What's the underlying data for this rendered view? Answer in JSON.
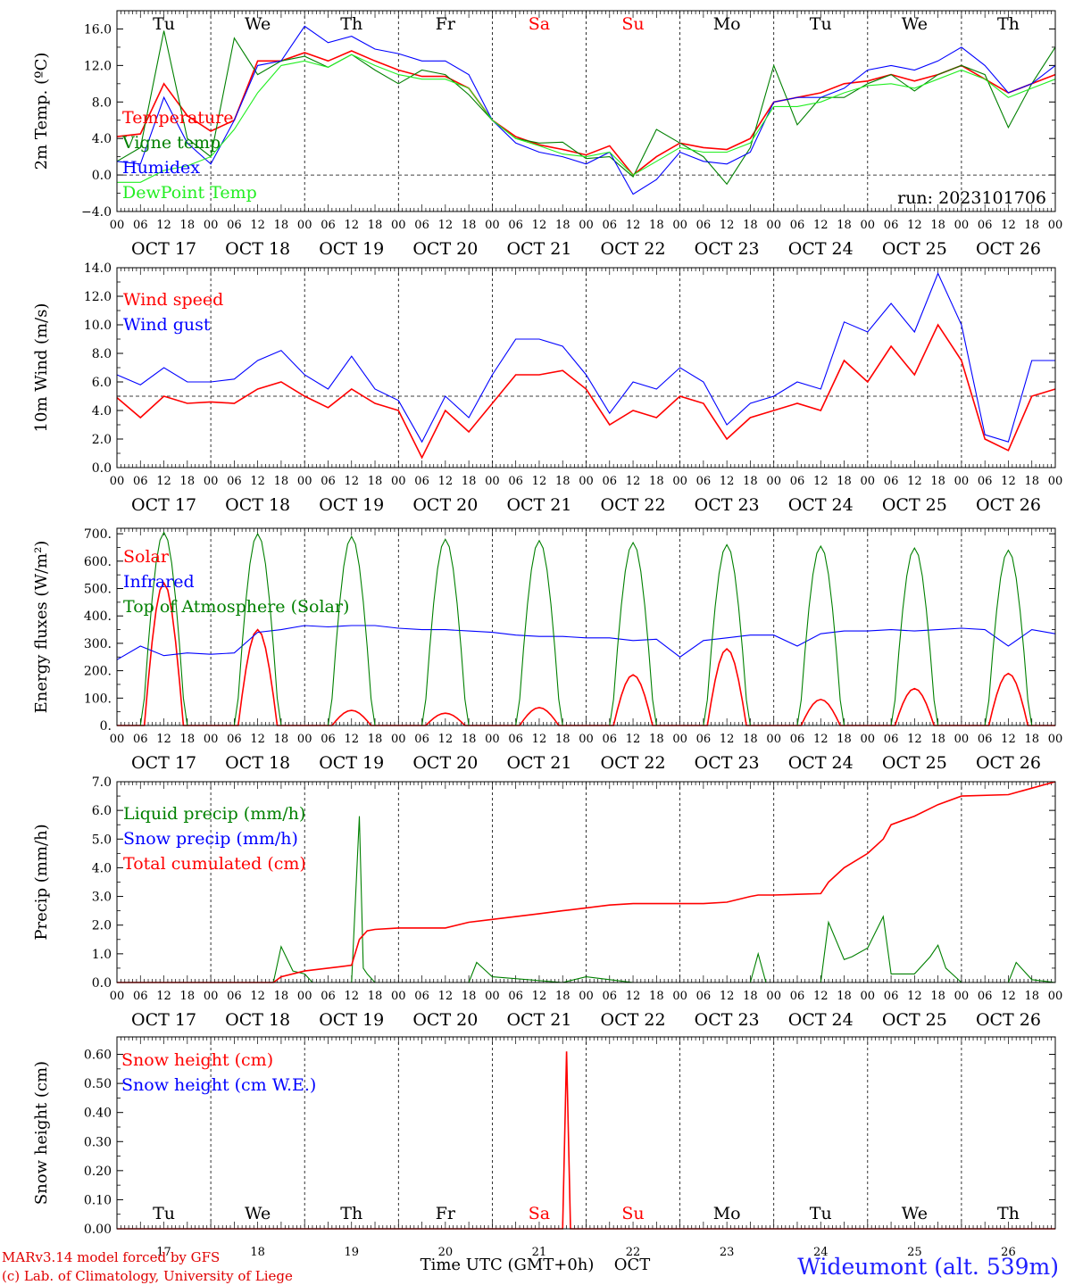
{
  "colors": {
    "red": "#ff0000",
    "green": "#008000",
    "blue": "#0000ff",
    "lightgreen": "#22ee22",
    "saturday_sunday": "#ff0000",
    "weekday": "#000000",
    "station": "#2020ff"
  },
  "time_axis": {
    "days": 10,
    "hour_ticks": [
      "00",
      "06",
      "12",
      "18"
    ],
    "final_hour_tick": "00",
    "date_labels": [
      "OCT 17",
      "OCT 18",
      "OCT 19",
      "OCT 20",
      "OCT 21",
      "OCT 22",
      "OCT 23",
      "OCT 24",
      "OCT 25",
      "OCT 26"
    ],
    "weekday_labels": [
      "Tu",
      "We",
      "Th",
      "Fr",
      "Sa",
      "Su",
      "Mo",
      "Tu",
      "We",
      "Th"
    ],
    "weekend_flags": [
      false,
      false,
      false,
      false,
      true,
      true,
      false,
      false,
      false,
      false
    ],
    "day_numbers": [
      "17",
      "18",
      "19",
      "20",
      "21",
      "22",
      "23",
      "24",
      "25",
      "26"
    ]
  },
  "footer": {
    "model_line": "MARv3.14 model forced by GFS",
    "copyright_line": "(c) Lab. of Climatology, University of Liege",
    "xlabel": "Time UTC (GMT+0h)",
    "month": "OCT",
    "station": "Wideumont (alt. 539m)"
  },
  "chart_data": [
    {
      "id": "temp",
      "type": "line",
      "ylabel": "2m Temp. (ºC)",
      "ylim": [
        -4,
        18
      ],
      "yticks": [
        -4,
        0,
        4,
        8,
        12,
        16
      ],
      "ytick_labels": [
        "−4.0",
        "0.0",
        "4.0",
        "8.0",
        "12.0",
        "16.0"
      ],
      "ref_line": 0,
      "annotation": "run: 2023101706",
      "show_weekdays": "top",
      "x_unit": "hours from OCT 17 00 UTC",
      "series": [
        {
          "name": "Temperature",
          "color": "red",
          "x": [
            0,
            6,
            12,
            18,
            24,
            30,
            36,
            42,
            48,
            54,
            60,
            66,
            72,
            78,
            84,
            90,
            96,
            102,
            108,
            114,
            120,
            126,
            132,
            138,
            144,
            150,
            156,
            162,
            168,
            174,
            180,
            186,
            192,
            198,
            204,
            210,
            216,
            222,
            228,
            234,
            240
          ],
          "values": [
            4.2,
            4.5,
            10,
            6.5,
            4.8,
            6,
            12.5,
            12.5,
            13.4,
            12.5,
            13.6,
            12.5,
            11.5,
            10.8,
            10.8,
            9.5,
            6,
            4.2,
            3.3,
            2.8,
            2.2,
            3.2,
            0,
            2,
            3.5,
            3,
            2.8,
            4,
            8,
            8.5,
            9,
            10,
            10.3,
            11,
            10.3,
            11,
            12,
            10.5,
            9,
            10,
            11
          ]
        },
        {
          "name": "Vigne temp",
          "color": "green",
          "x": [
            0,
            6,
            12,
            18,
            24,
            30,
            36,
            42,
            48,
            54,
            60,
            66,
            72,
            78,
            84,
            90,
            96,
            102,
            108,
            114,
            120,
            126,
            132,
            138,
            144,
            150,
            156,
            162,
            168,
            174,
            180,
            186,
            192,
            198,
            204,
            210,
            216,
            222,
            228,
            234,
            240
          ],
          "values": [
            1.5,
            3,
            15.8,
            4,
            2,
            15,
            11,
            12.5,
            13,
            11.8,
            13.2,
            11.5,
            10,
            11.5,
            11,
            8.8,
            6,
            4,
            3.5,
            3.6,
            1.8,
            2,
            -0.2,
            5,
            3.5,
            2,
            -1,
            3,
            12,
            5.5,
            8.5,
            8.5,
            10,
            11,
            9.2,
            11,
            12,
            11,
            5.2,
            10,
            14
          ]
        },
        {
          "name": "Humidex",
          "color": "blue",
          "x": [
            0,
            6,
            12,
            18,
            24,
            30,
            36,
            42,
            48,
            54,
            60,
            66,
            72,
            78,
            84,
            90,
            96,
            102,
            108,
            114,
            120,
            126,
            132,
            138,
            144,
            150,
            156,
            162,
            168,
            174,
            180,
            186,
            192,
            198,
            204,
            210,
            216,
            222,
            228,
            234,
            240
          ],
          "values": [
            1.5,
            1.2,
            8.5,
            3.5,
            1.2,
            6,
            12,
            12.5,
            16.3,
            14.5,
            15.2,
            13.8,
            13.3,
            12.5,
            12.5,
            11,
            6,
            3.5,
            2.5,
            2,
            1.2,
            2.5,
            -2.1,
            -0.5,
            2.5,
            1.5,
            1.2,
            2.5,
            8,
            8.5,
            8.5,
            9.5,
            11.5,
            12,
            11.5,
            12.5,
            14,
            12,
            9,
            10,
            12
          ]
        },
        {
          "name": "DewPoint Temp",
          "color": "lightgreen",
          "x": [
            0,
            6,
            12,
            18,
            24,
            30,
            36,
            42,
            48,
            54,
            60,
            66,
            72,
            78,
            84,
            90,
            96,
            102,
            108,
            114,
            120,
            126,
            132,
            138,
            144,
            150,
            156,
            162,
            168,
            174,
            180,
            186,
            192,
            198,
            204,
            210,
            216,
            222,
            228,
            234,
            240
          ],
          "values": [
            -0.8,
            -0.8,
            0.5,
            1,
            2,
            5,
            9,
            12,
            12.5,
            11.8,
            13.2,
            12,
            11,
            10.5,
            10.5,
            9.5,
            6,
            4,
            3.2,
            2.3,
            2,
            2.5,
            0,
            1.5,
            3,
            2.5,
            2.5,
            3.5,
            7.5,
            7.5,
            8,
            9,
            9.8,
            10,
            9.5,
            10.5,
            11.5,
            10.5,
            8.5,
            9.5,
            10.5
          ]
        }
      ]
    },
    {
      "id": "wind",
      "type": "line",
      "ylabel": "10m Wind (m/s)",
      "ylim": [
        0,
        14
      ],
      "yticks": [
        0,
        2,
        4,
        6,
        8,
        10,
        12,
        14
      ],
      "ytick_labels": [
        "0.0",
        "2.0",
        "4.0",
        "6.0",
        "8.0",
        "10.0",
        "12.0",
        "14.0"
      ],
      "ref_line": 5,
      "x_unit": "hours from OCT 17 00 UTC",
      "series": [
        {
          "name": "Wind speed",
          "color": "red",
          "x": [
            0,
            6,
            12,
            18,
            24,
            30,
            36,
            42,
            48,
            54,
            60,
            66,
            72,
            78,
            84,
            90,
            96,
            102,
            108,
            114,
            120,
            126,
            132,
            138,
            144,
            150,
            156,
            162,
            168,
            174,
            180,
            186,
            192,
            198,
            204,
            210,
            216,
            222,
            228,
            234,
            240
          ],
          "values": [
            4.9,
            3.5,
            5,
            4.5,
            4.6,
            4.5,
            5.5,
            6,
            5,
            4.2,
            5.5,
            4.5,
            4,
            0.7,
            4,
            2.5,
            4.5,
            6.5,
            6.5,
            6.8,
            5.5,
            3,
            4,
            3.5,
            5,
            4.5,
            2,
            3.5,
            4,
            4.5,
            4,
            7.5,
            6,
            8.5,
            6.5,
            10,
            7.5,
            2,
            1.2,
            5,
            5.5
          ]
        },
        {
          "name": "Wind gust",
          "color": "blue",
          "x": [
            0,
            6,
            12,
            18,
            24,
            30,
            36,
            42,
            48,
            54,
            60,
            66,
            72,
            78,
            84,
            90,
            96,
            102,
            108,
            114,
            120,
            126,
            132,
            138,
            144,
            150,
            156,
            162,
            168,
            174,
            180,
            186,
            192,
            198,
            204,
            210,
            216,
            222,
            228,
            234,
            240
          ],
          "values": [
            6.5,
            5.8,
            7,
            6,
            6,
            6.2,
            7.5,
            8.2,
            6.5,
            5.5,
            7.8,
            5.5,
            4.7,
            1.8,
            5,
            3.5,
            6.5,
            9,
            9,
            8.5,
            6.5,
            3.8,
            6,
            5.5,
            7,
            6,
            3,
            4.5,
            5,
            6,
            5.5,
            10.2,
            9.5,
            11.5,
            9.5,
            13.6,
            10,
            2.3,
            1.8,
            7.5,
            7.5
          ]
        }
      ]
    },
    {
      "id": "energy",
      "type": "line",
      "ylabel": "Energy fluxes (W/m²)",
      "ylim": [
        0,
        720
      ],
      "yticks": [
        0,
        100,
        200,
        300,
        400,
        500,
        600,
        700
      ],
      "ytick_labels": [
        "0.",
        "100.",
        "200.",
        "300.",
        "400.",
        "500.",
        "600.",
        "700."
      ],
      "x_unit": "hours from OCT 17 00 UTC",
      "series": [
        {
          "name": "Solar",
          "color": "red",
          "pattern": "diurnal",
          "noon_hour": 12,
          "half_width_hours": 5,
          "day_peaks": [
            520,
            350,
            55,
            45,
            65,
            185,
            280,
            95,
            135,
            190
          ]
        },
        {
          "name": "Infrared",
          "color": "blue",
          "x": [
            0,
            6,
            12,
            18,
            24,
            30,
            36,
            42,
            48,
            54,
            60,
            66,
            72,
            78,
            84,
            90,
            96,
            102,
            108,
            114,
            120,
            126,
            132,
            138,
            144,
            150,
            156,
            162,
            168,
            174,
            180,
            186,
            192,
            198,
            204,
            210,
            216,
            222,
            228,
            234,
            240
          ],
          "values": [
            240,
            290,
            255,
            265,
            260,
            265,
            340,
            350,
            365,
            360,
            365,
            365,
            355,
            350,
            350,
            345,
            340,
            330,
            325,
            325,
            320,
            320,
            310,
            315,
            250,
            310,
            320,
            330,
            330,
            290,
            335,
            345,
            345,
            350,
            345,
            350,
            355,
            350,
            290,
            350,
            335
          ]
        },
        {
          "name": "Top of Atmosphere (Solar)",
          "color": "green",
          "pattern": "diurnal",
          "noon_hour": 12,
          "half_width_hours": 5.5,
          "day_peaks": [
            705,
            700,
            690,
            680,
            675,
            668,
            660,
            655,
            648,
            640
          ]
        }
      ]
    },
    {
      "id": "precip",
      "type": "line",
      "ylabel": "Precip (mm/h)",
      "ylim": [
        0,
        7
      ],
      "yticks": [
        0,
        1,
        2,
        3,
        4,
        5,
        6,
        7
      ],
      "ytick_labels": [
        "0.0",
        "1.0",
        "2.0",
        "3.0",
        "4.0",
        "5.0",
        "6.0",
        "7.0"
      ],
      "x_unit": "hours from OCT 17 00 UTC",
      "series": [
        {
          "name": "Liquid precip (mm/h)",
          "color": "green",
          "x": [
            0,
            36,
            40,
            42,
            45,
            48,
            50,
            54,
            60,
            62,
            63,
            64,
            66,
            72,
            84,
            90,
            92,
            96,
            114,
            120,
            126,
            132,
            150,
            156,
            162,
            164,
            166,
            168,
            180,
            182,
            186,
            188,
            192,
            196,
            198,
            204,
            208,
            210,
            212,
            216,
            228,
            230,
            234,
            240
          ],
          "values": [
            0,
            0,
            0,
            1.25,
            0.4,
            0.3,
            0,
            0,
            0,
            5.8,
            0.5,
            0.3,
            0,
            0,
            0,
            0,
            0.7,
            0.2,
            0,
            0.2,
            0.1,
            0,
            0,
            0,
            0,
            1,
            0,
            0,
            0,
            2.1,
            0.8,
            0.9,
            1.2,
            2.3,
            0.3,
            0.3,
            0.9,
            1.3,
            0.5,
            0,
            0,
            0.7,
            0.1,
            0
          ]
        },
        {
          "name": "Snow precip (mm/h)",
          "color": "blue",
          "x": [
            0,
            240
          ],
          "values": [
            0,
            0
          ]
        },
        {
          "name": "Total cumulated (cm)",
          "color": "red",
          "x": [
            0,
            40,
            42,
            48,
            60,
            62,
            64,
            66,
            72,
            84,
            90,
            96,
            108,
            114,
            120,
            126,
            132,
            150,
            156,
            162,
            164,
            168,
            180,
            182,
            186,
            192,
            196,
            198,
            204,
            210,
            216,
            228,
            240
          ],
          "values": [
            0,
            0,
            0.2,
            0.4,
            0.6,
            1.5,
            1.8,
            1.85,
            1.9,
            1.9,
            2.1,
            2.2,
            2.4,
            2.5,
            2.6,
            2.7,
            2.75,
            2.75,
            2.8,
            3,
            3.05,
            3.05,
            3.1,
            3.5,
            4,
            4.5,
            5,
            5.5,
            5.8,
            6.2,
            6.5,
            6.55,
            7
          ]
        }
      ]
    },
    {
      "id": "snow",
      "type": "line",
      "ylabel": "Snow height (cm)",
      "ylim": [
        0,
        0.66
      ],
      "yticks": [
        0,
        0.1,
        0.2,
        0.3,
        0.4,
        0.5,
        0.6
      ],
      "ytick_labels": [
        "0.00",
        "0.10",
        "0.20",
        "0.30",
        "0.40",
        "0.50",
        "0.60"
      ],
      "show_weekdays": "bottom",
      "x_unit": "hours from OCT 17 00 UTC",
      "series": [
        {
          "name": "Snow height (cm)",
          "color": "red",
          "x": [
            0,
            114,
            115,
            116,
            117,
            240
          ],
          "values": [
            0,
            0,
            0.61,
            0,
            0,
            0
          ]
        },
        {
          "name": "Snow height (cm W.E.)",
          "color": "blue",
          "x": [
            0,
            240
          ],
          "values": [
            0,
            0
          ]
        }
      ]
    }
  ]
}
